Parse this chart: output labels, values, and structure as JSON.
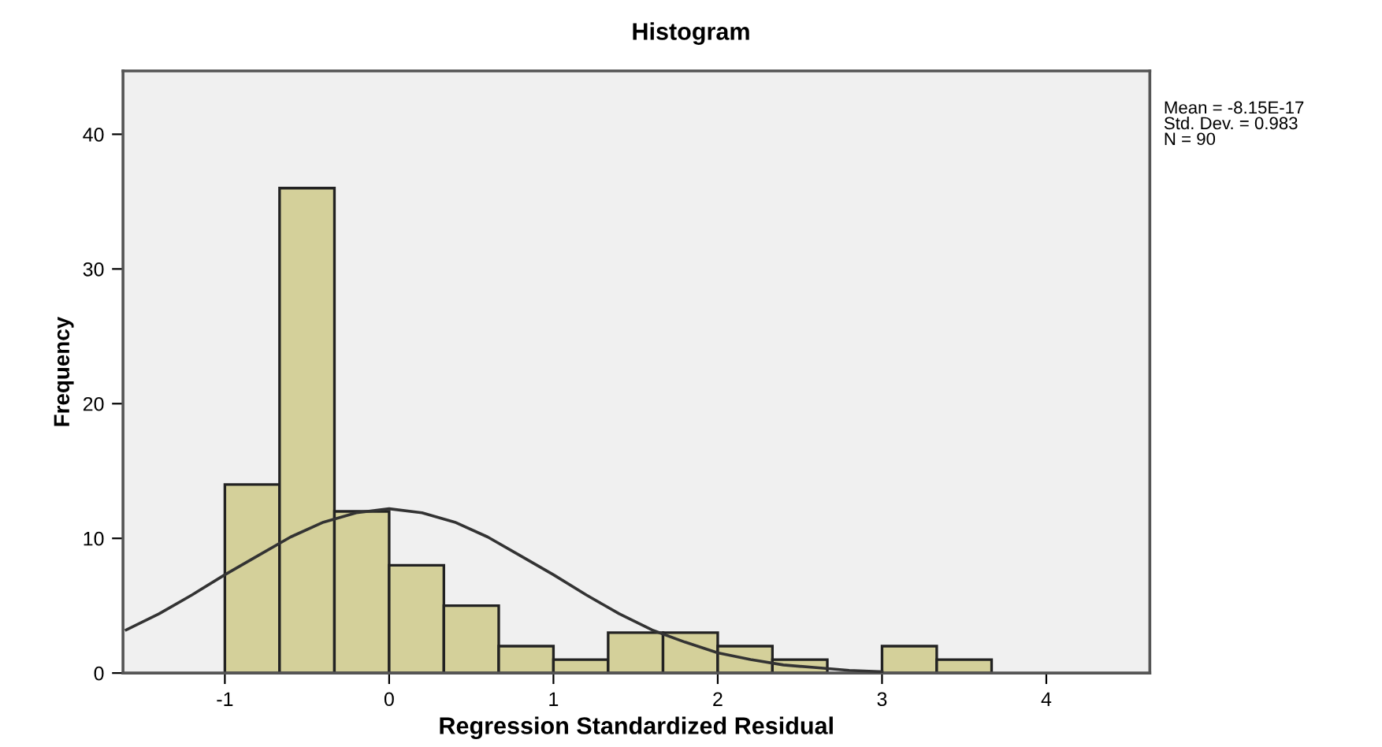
{
  "chart_data": {
    "type": "histogram",
    "title": "Histogram",
    "xlabel": "Regression Standardized Residual",
    "ylabel": "Frequency",
    "bins": [
      -1,
      -0.667,
      -0.333,
      0,
      0.333,
      0.667,
      1,
      1.333,
      1.667,
      2,
      2.333,
      2.667,
      3,
      3.333,
      3.667
    ],
    "values": [
      14,
      36,
      12,
      8,
      5,
      2,
      1,
      3,
      3,
      2,
      1,
      0,
      2,
      1
    ],
    "color": "#d4d09a",
    "series": [
      {
        "type": "line",
        "color": "#333333",
        "x": [
          -1.6,
          -1.4,
          -1.2,
          -1.0,
          -0.8,
          -0.6,
          -0.4,
          -0.2,
          0,
          0.2,
          0.4,
          0.6,
          0.8,
          1.0,
          1.2,
          1.4,
          1.6,
          1.8,
          2.0,
          2.2,
          2.4,
          2.6,
          2.8,
          3.0
        ],
        "values": [
          3.2,
          4.4,
          5.8,
          7.3,
          8.7,
          10.1,
          11.2,
          11.9,
          12.2,
          11.9,
          11.2,
          10.1,
          8.7,
          7.3,
          5.8,
          4.4,
          3.2,
          2.3,
          1.5,
          1.0,
          0.6,
          0.4,
          0.2,
          0.1
        ]
      }
    ],
    "xlim": [
      -1.62,
      4.63
    ],
    "ylim": [
      0,
      44.7
    ],
    "xticks": [
      -1,
      0,
      1,
      2,
      3,
      4
    ],
    "yticks": [
      0,
      10,
      20,
      30,
      40
    ],
    "annotations": [
      "Mean = -8.15E-17\nStd. Dev. = 0.983\nN = 90"
    ],
    "grid": false,
    "legend": false
  }
}
